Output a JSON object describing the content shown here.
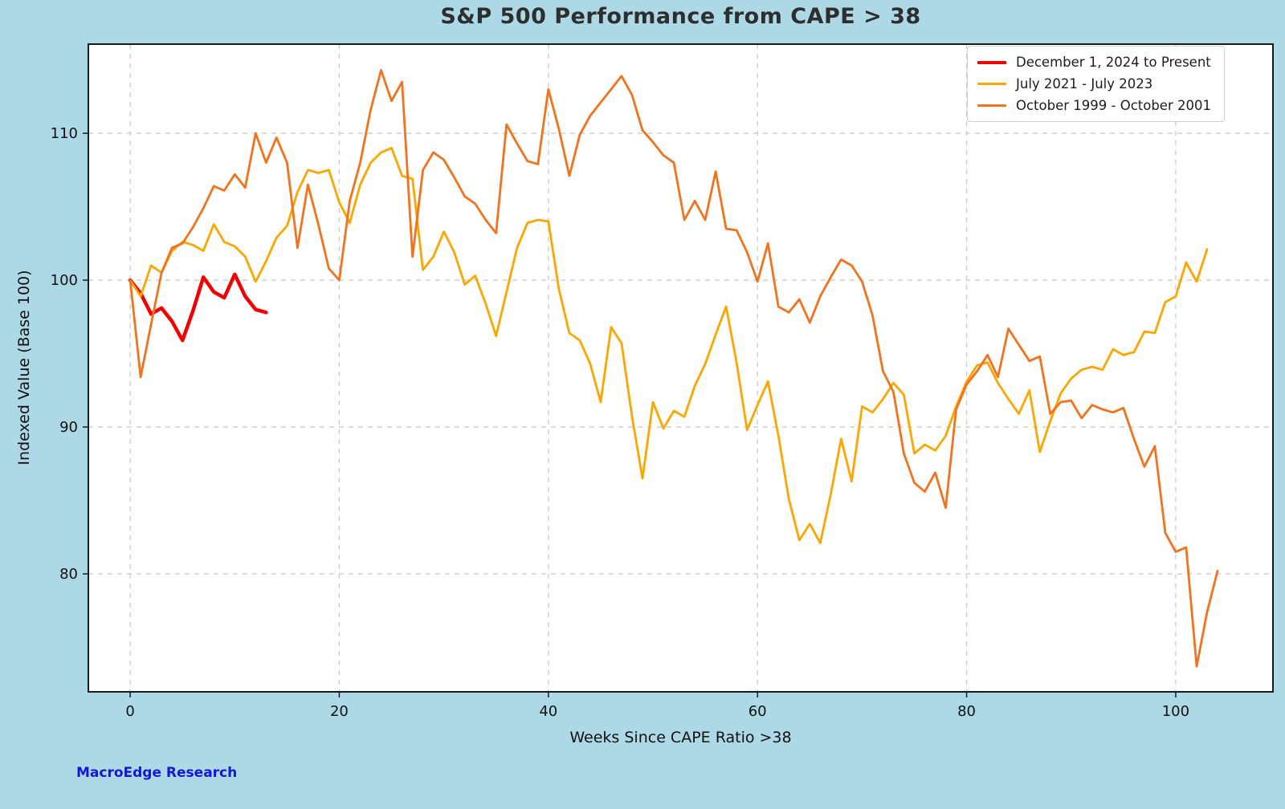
{
  "footer": "MacroEdge Research",
  "chart_data": {
    "type": "line",
    "title": "S&P 500 Performance from CAPE > 38",
    "xlabel": "Weeks Since CAPE Ratio >38",
    "ylabel": "Indexed Value (Base 100)",
    "x_unit": "weeks since CAPE ratio exceeded 38 (weekly points, x = 0,1,2,...)",
    "xlim": [
      -4.0,
      109.3
    ],
    "ylim": [
      71.97,
      116.07
    ],
    "xticks": [
      0,
      20,
      40,
      60,
      80,
      100
    ],
    "yticks": [
      80,
      90,
      100,
      110
    ],
    "grid": true,
    "grid_style": "dashed",
    "legend_position": "top-right",
    "background": "#ADD8E6",
    "plot_background": "#FFFFFF",
    "axis_color": "#1a1a1a",
    "grid_color": "#cccccc",
    "series": [
      {
        "name": "December 1, 2024 to Present",
        "color": "#F40000",
        "line_width": 4.5,
        "values": [
          100,
          99.1,
          97.7,
          98.1,
          97.2,
          95.9,
          97.9,
          100.2,
          99.2,
          98.8,
          100.4,
          98.9,
          98.0,
          97.8
        ]
      },
      {
        "name": "July 2021 - July 2023",
        "color": "#FFA500",
        "line_width": 2.8,
        "values": [
          100,
          98.9,
          101.0,
          100.5,
          102.0,
          102.6,
          102.4,
          102.0,
          103.8,
          102.6,
          102.3,
          101.6,
          99.9,
          101.3,
          102.9,
          103.7,
          106.0,
          107.5,
          107.3,
          107.5,
          105.3,
          103.9,
          106.5,
          108.0,
          108.7,
          109.0,
          107.1,
          106.9,
          100.7,
          101.6,
          103.3,
          101.9,
          99.7,
          100.3,
          98.4,
          96.2,
          99.2,
          102.2,
          103.9,
          104.1,
          104.0,
          99.4,
          96.4,
          95.9,
          94.3,
          91.7,
          96.8,
          95.7,
          90.7,
          86.5,
          91.7,
          89.9,
          91.1,
          90.7,
          92.8,
          94.3,
          96.3,
          98.2,
          94.4,
          89.8,
          91.5,
          93.1,
          89.4,
          85.1,
          82.3,
          83.4,
          82.1,
          85.4,
          89.2,
          86.3,
          91.4,
          91.0,
          91.9,
          93.0,
          92.2,
          88.2,
          88.8,
          88.4,
          89.4,
          91.4,
          93.1,
          94.2,
          94.4,
          93.0,
          91.9,
          90.9,
          92.5,
          88.3,
          90.4,
          92.3,
          93.3,
          93.9,
          94.1,
          93.9,
          95.3,
          94.9,
          95.1,
          96.5,
          96.4,
          98.5,
          98.9,
          101.2,
          99.9,
          102.1
        ]
      },
      {
        "name": "October 1999 - October 2001",
        "color": "#F4721C",
        "line_width": 2.8,
        "values": [
          100,
          93.4,
          97.0,
          100.5,
          102.2,
          102.5,
          103.6,
          104.9,
          106.4,
          106.1,
          107.2,
          106.3,
          110.0,
          108.0,
          109.7,
          108.0,
          102.2,
          106.5,
          103.8,
          100.8,
          100.0,
          105.4,
          108.0,
          111.6,
          114.3,
          112.2,
          113.5,
          101.6,
          107.5,
          108.7,
          108.2,
          107.0,
          105.7,
          105.2,
          104.1,
          103.2,
          110.6,
          109.3,
          108.1,
          107.9,
          113.0,
          110.3,
          107.1,
          109.9,
          111.2,
          112.1,
          113.0,
          113.9,
          112.6,
          110.2,
          109.4,
          108.5,
          108.0,
          104.1,
          105.4,
          104.1,
          107.4,
          103.5,
          103.4,
          101.9,
          99.9,
          102.5,
          98.2,
          97.8,
          98.7,
          97.1,
          98.9,
          100.2,
          101.4,
          101.0,
          99.9,
          97.6,
          93.8,
          92.4,
          88.2,
          86.2,
          85.6,
          86.9,
          84.5,
          91.2,
          92.9,
          93.8,
          94.9,
          93.4,
          96.7,
          95.6,
          94.5,
          94.8,
          90.9,
          91.7,
          91.8,
          90.6,
          91.5,
          91.2,
          91.0,
          91.3,
          89.2,
          87.3,
          88.7,
          82.8,
          81.5,
          81.8,
          73.7,
          77.4,
          80.2
        ]
      }
    ]
  }
}
